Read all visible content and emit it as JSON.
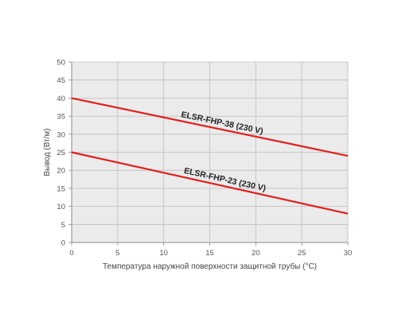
{
  "chart_data": {
    "type": "line",
    "xlabel": "Температура наружной поверхности защитной трубы (°C)",
    "ylabel": "Вывод (Вт/м)",
    "xlim": [
      0,
      30
    ],
    "ylim": [
      0,
      50
    ],
    "x_ticks": [
      0,
      5,
      10,
      15,
      20,
      25,
      30
    ],
    "y_ticks": [
      0,
      5,
      10,
      15,
      20,
      25,
      30,
      35,
      40,
      45,
      50
    ],
    "grid": true,
    "legend": "none",
    "series": [
      {
        "name": "ELSR-FHP-38 (230 V)",
        "x": [
          0,
          30
        ],
        "y": [
          40,
          24
        ],
        "color": "#e0201c"
      },
      {
        "name": "ELSR-FHP-23 (230 V)",
        "x": [
          0,
          30
        ],
        "y": [
          25,
          8
        ],
        "color": "#e0201c"
      }
    ],
    "colors": {
      "plot_background": "#ebebeb",
      "grid": "#bdbdbd",
      "axis": "#8a8a8a"
    }
  }
}
